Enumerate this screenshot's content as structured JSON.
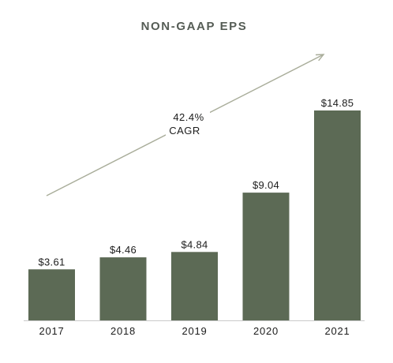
{
  "chart_data": {
    "type": "bar",
    "title": "NON-GAAP EPS",
    "categories": [
      "2017",
      "2018",
      "2019",
      "2020",
      "2021"
    ],
    "values": [
      3.61,
      4.46,
      4.84,
      9.04,
      14.85
    ],
    "value_labels": [
      "$3.61",
      "$4.46",
      "$4.84",
      "$9.04",
      "$14.85"
    ],
    "xlabel": "",
    "ylabel": "",
    "ylim": [
      0,
      14.85
    ],
    "grid": false,
    "legend": "none",
    "annotation": {
      "lines": [
        "42.4%",
        "CAGR"
      ],
      "arrow": "upward-right"
    },
    "colors": {
      "bar": "#5c6a55",
      "arrow": "#a9ad9a",
      "baseline": "#c9c9c9",
      "title": "#555c55"
    }
  }
}
